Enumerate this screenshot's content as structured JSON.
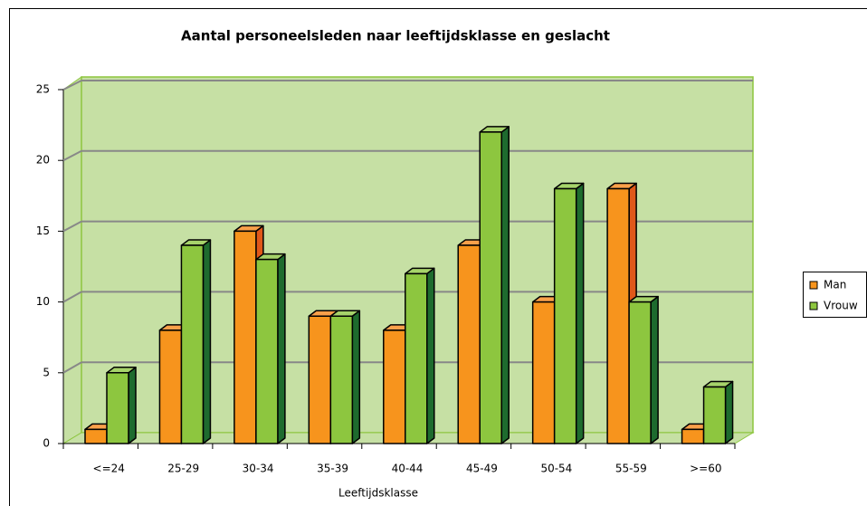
{
  "chart_data": {
    "type": "bar",
    "title": "Aantal personeelsleden naar leeftijdsklasse en geslacht",
    "x_label": "Leeftijdsklasse",
    "categories": [
      "<=24",
      "25-29",
      "30-34",
      "35-39",
      "40-44",
      "45-49",
      "50-54",
      "55-59",
      ">=60"
    ],
    "series": [
      {
        "name": "Man",
        "color": "#f7941d",
        "values": [
          1,
          8,
          15,
          9,
          8,
          14,
          10,
          18,
          1
        ]
      },
      {
        "name": "Vrouw",
        "color": "#8dc63f",
        "values": [
          5,
          14,
          13,
          9,
          12,
          22,
          18,
          10,
          4
        ]
      }
    ],
    "ylim": [
      0,
      25
    ],
    "yticks": [
      0,
      5,
      10,
      15,
      20,
      25
    ],
    "grid": true,
    "legend": "right"
  }
}
